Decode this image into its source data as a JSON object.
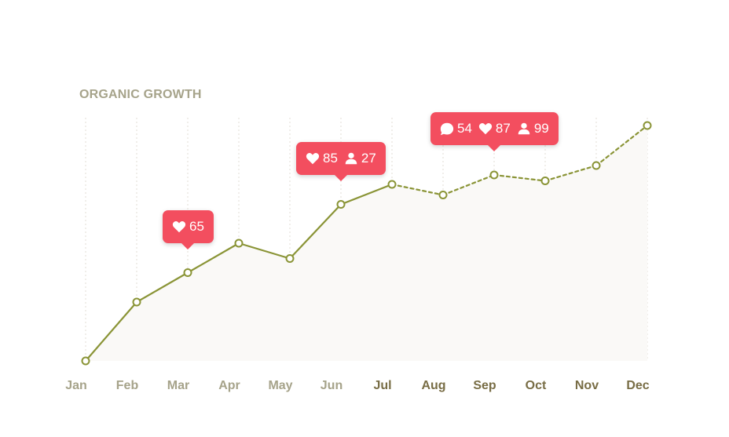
{
  "chart_data": {
    "type": "line",
    "title": "ORGANIC GROWTH",
    "categories": [
      "Jan",
      "Feb",
      "Mar",
      "Apr",
      "May",
      "Jun",
      "Jul",
      "Aug",
      "Sep",
      "Oct",
      "Nov",
      "Dec"
    ],
    "values": [
      0,
      25,
      37.5,
      50,
      43.5,
      66.5,
      75,
      70.5,
      79,
      76.5,
      83,
      100
    ],
    "projected_from_index": 6,
    "ylim": [
      0,
      100
    ],
    "grid": "vertical-dotted",
    "colors": {
      "line": "#8a9436",
      "area": "#faf9f7",
      "grid": "#e1ded6",
      "bubble": "#f34e5f",
      "tick_past": "#a6a38a",
      "tick_future": "#786d45",
      "title": "#a6a38a"
    },
    "annotations": [
      {
        "category": "Mar",
        "metrics": [
          {
            "icon": "heart-icon",
            "value": "65"
          }
        ]
      },
      {
        "category": "Jun",
        "metrics": [
          {
            "icon": "heart-icon",
            "value": "85"
          },
          {
            "icon": "user-icon",
            "value": "27"
          }
        ]
      },
      {
        "category": "Sep",
        "metrics": [
          {
            "icon": "comment-icon",
            "value": "54"
          },
          {
            "icon": "heart-icon",
            "value": "87"
          },
          {
            "icon": "user-icon",
            "value": "99"
          }
        ]
      }
    ]
  }
}
